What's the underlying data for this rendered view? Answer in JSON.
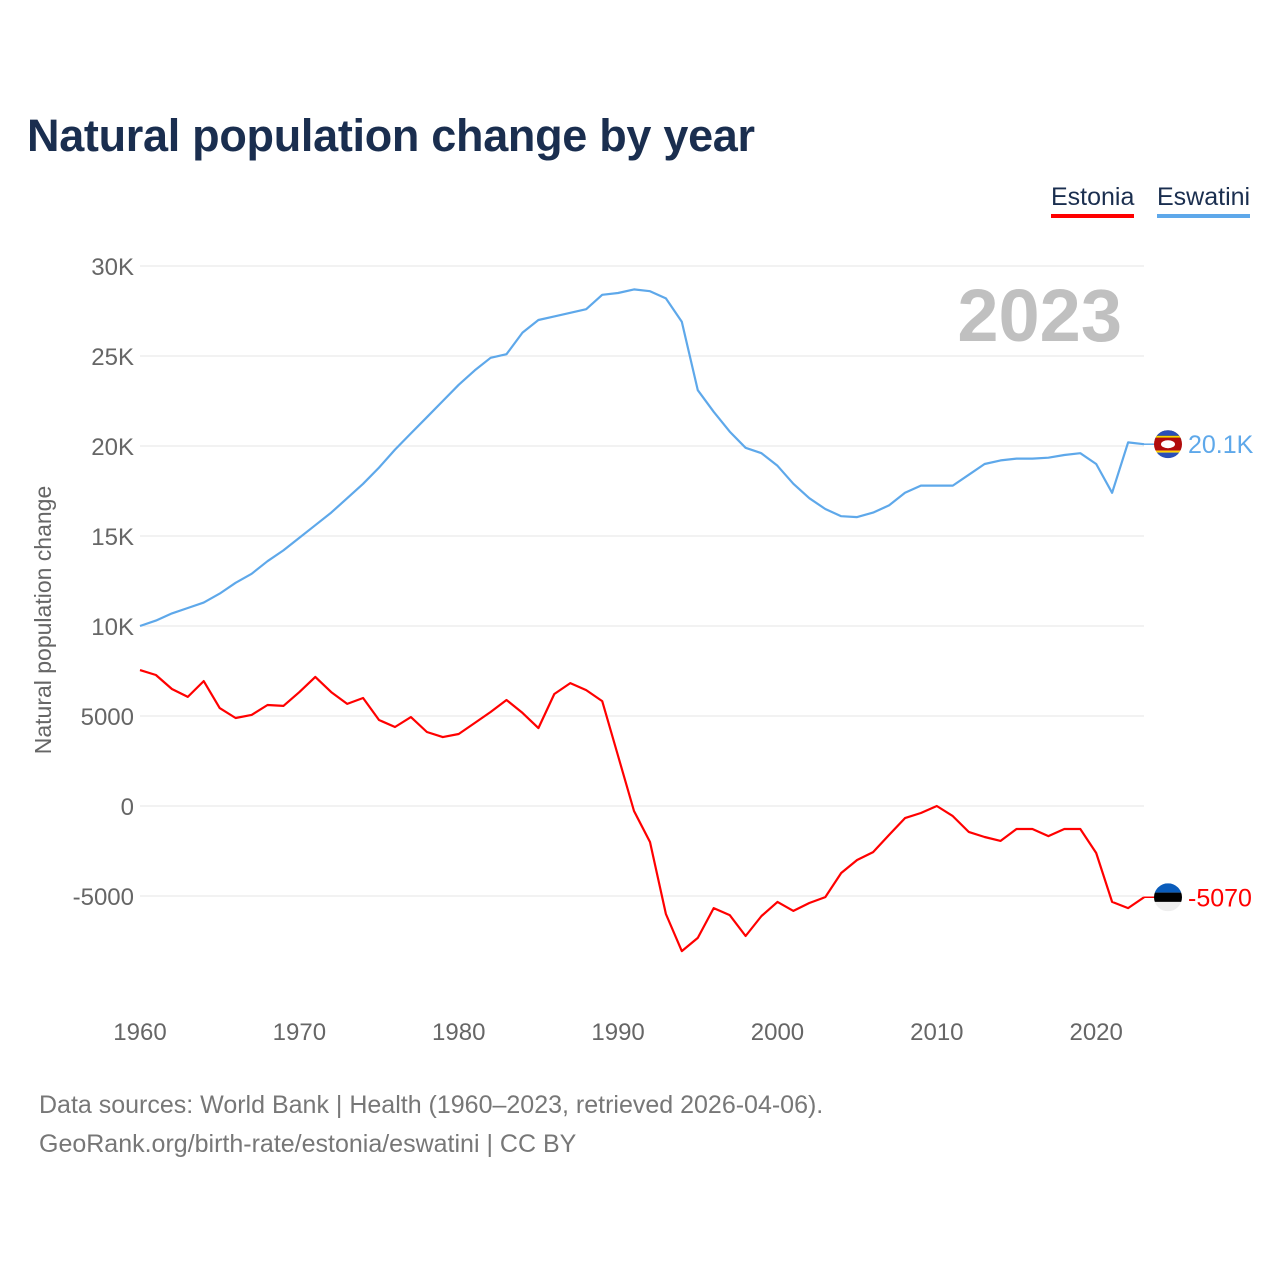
{
  "chart_data": {
    "type": "line",
    "title": "Natural population change by year",
    "xlabel": "",
    "ylabel": "Natural population change",
    "xlim": [
      1960,
      2023
    ],
    "ylim": [
      -10000,
      30000
    ],
    "x_ticks": [
      "1960",
      "1970",
      "1980",
      "1990",
      "2000",
      "2010",
      "2020"
    ],
    "x_tick_values": [
      1960,
      1970,
      1980,
      1990,
      2000,
      2010,
      2020
    ],
    "y_ticks": [
      "30K",
      "25K",
      "20K",
      "15K",
      "10K",
      "5000",
      "0",
      "-5000"
    ],
    "y_tick_values": [
      30000,
      25000,
      20000,
      15000,
      10000,
      5000,
      0,
      -5000
    ],
    "grid": true,
    "legend_placement": "top-right",
    "year_watermark": "2023",
    "x": [
      1960,
      1961,
      1962,
      1963,
      1964,
      1965,
      1966,
      1967,
      1968,
      1969,
      1970,
      1971,
      1972,
      1973,
      1974,
      1975,
      1976,
      1977,
      1978,
      1979,
      1980,
      1981,
      1982,
      1983,
      1984,
      1985,
      1986,
      1987,
      1988,
      1989,
      1990,
      1991,
      1992,
      1993,
      1994,
      1995,
      1996,
      1997,
      1998,
      1999,
      2000,
      2001,
      2002,
      2003,
      2004,
      2005,
      2006,
      2007,
      2008,
      2009,
      2010,
      2011,
      2012,
      2013,
      2014,
      2015,
      2016,
      2017,
      2018,
      2019,
      2020,
      2021,
      2022,
      2023
    ],
    "series": [
      {
        "name": "Estonia",
        "color": "#ff0000",
        "end_label": "-5070",
        "values": [
          7550,
          7280,
          6500,
          6060,
          6940,
          5440,
          4890,
          5060,
          5610,
          5560,
          6330,
          7170,
          6330,
          5670,
          6000,
          4780,
          4390,
          4940,
          4110,
          3830,
          4000,
          4610,
          5220,
          5890,
          5170,
          4330,
          6220,
          6830,
          6440,
          5830,
          2780,
          -280,
          -2000,
          -6000,
          -8060,
          -7330,
          -5670,
          -6060,
          -7220,
          -6110,
          -5330,
          -5830,
          -5390,
          -5060,
          -3720,
          -3000,
          -2560,
          -1610,
          -670,
          -390,
          0,
          -560,
          -1440,
          -1720,
          -1940,
          -1280,
          -1280,
          -1670,
          -1280,
          -1280,
          -2610,
          -5330,
          -5670,
          -5070
        ]
      },
      {
        "name": "Eswatini",
        "color": "#5ea8ea",
        "end_label": "20.1K",
        "values": [
          10000,
          10300,
          10700,
          11000,
          11300,
          11800,
          12400,
          12900,
          13600,
          14200,
          14900,
          15600,
          16300,
          17100,
          17900,
          18800,
          19800,
          20700,
          21600,
          22500,
          23400,
          24200,
          24900,
          25100,
          26300,
          27000,
          27200,
          27400,
          27600,
          28400,
          28500,
          28700,
          28600,
          28200,
          26900,
          23100,
          21900,
          20800,
          19900,
          19600,
          18900,
          17900,
          17100,
          16500,
          16100,
          16050,
          16300,
          16700,
          17400,
          17800,
          17800,
          17800,
          18400,
          19000,
          19200,
          19300,
          19300,
          19350,
          19500,
          19600,
          19000,
          17400,
          20200,
          20100
        ]
      }
    ]
  },
  "footer": {
    "line1": "Data sources: World Bank | Health (1960–2023, retrieved 2026-04-06).",
    "line2": "GeoRank.org/birth-rate/estonia/eswatini | CC BY"
  }
}
